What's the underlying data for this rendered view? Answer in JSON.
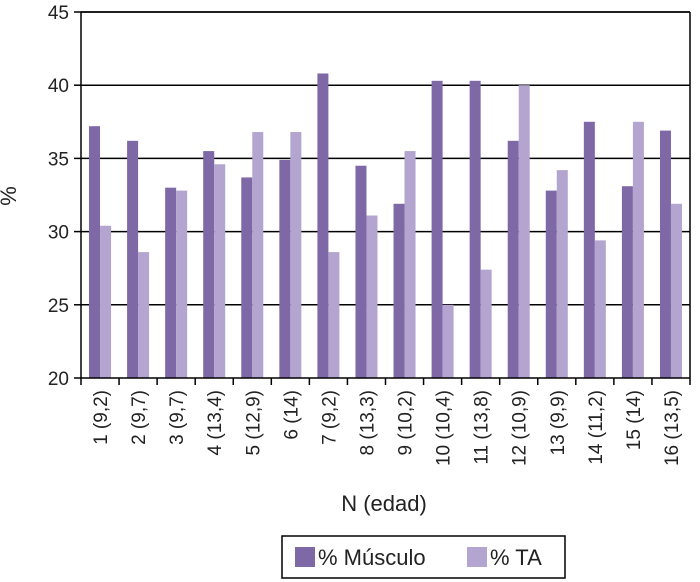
{
  "chart_data": {
    "type": "bar",
    "title": "",
    "xlabel": "N (edad)",
    "ylabel": "%",
    "ylim": [
      20,
      45
    ],
    "yticks": [
      20,
      25,
      30,
      35,
      40,
      45
    ],
    "grid": true,
    "legend_position": "bottom",
    "categories": [
      "1 (9,2)",
      "2 (9,7)",
      "3 (9,7)",
      "4 (13,4)",
      "5 (12,9)",
      "6 (14)",
      "7 (9,2)",
      "8 (13,3)",
      "9 (10,2)",
      "10 (10,4)",
      "11 (13,8)",
      "12 (10,9)",
      "13 (9,9)",
      "14 (11,2)",
      "15 (14)",
      "16 (13,5)"
    ],
    "series": [
      {
        "name": "% Músculo",
        "color": "#7f68a6",
        "values": [
          37.2,
          36.2,
          33.0,
          35.5,
          33.7,
          34.9,
          40.8,
          34.5,
          31.9,
          40.3,
          40.3,
          36.2,
          32.8,
          37.5,
          33.1,
          36.9
        ]
      },
      {
        "name": "% TA",
        "color": "#b3a5d0",
        "values": [
          30.4,
          28.6,
          32.8,
          34.6,
          36.8,
          36.8,
          28.6,
          31.1,
          35.5,
          25.0,
          27.4,
          40.0,
          34.2,
          29.4,
          37.5,
          31.9
        ]
      }
    ]
  }
}
